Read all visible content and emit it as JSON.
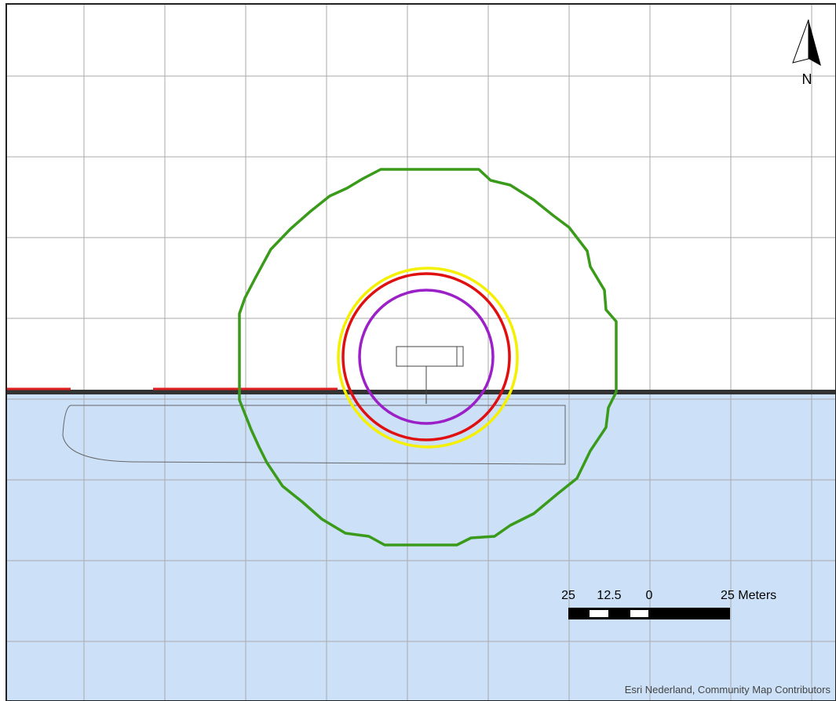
{
  "north_label": "N",
  "scale_bar": {
    "labels": [
      "25",
      "12.5",
      "0",
      "25 Meters"
    ]
  },
  "attribution": "Esri Nederland, Community Map Contributors"
}
